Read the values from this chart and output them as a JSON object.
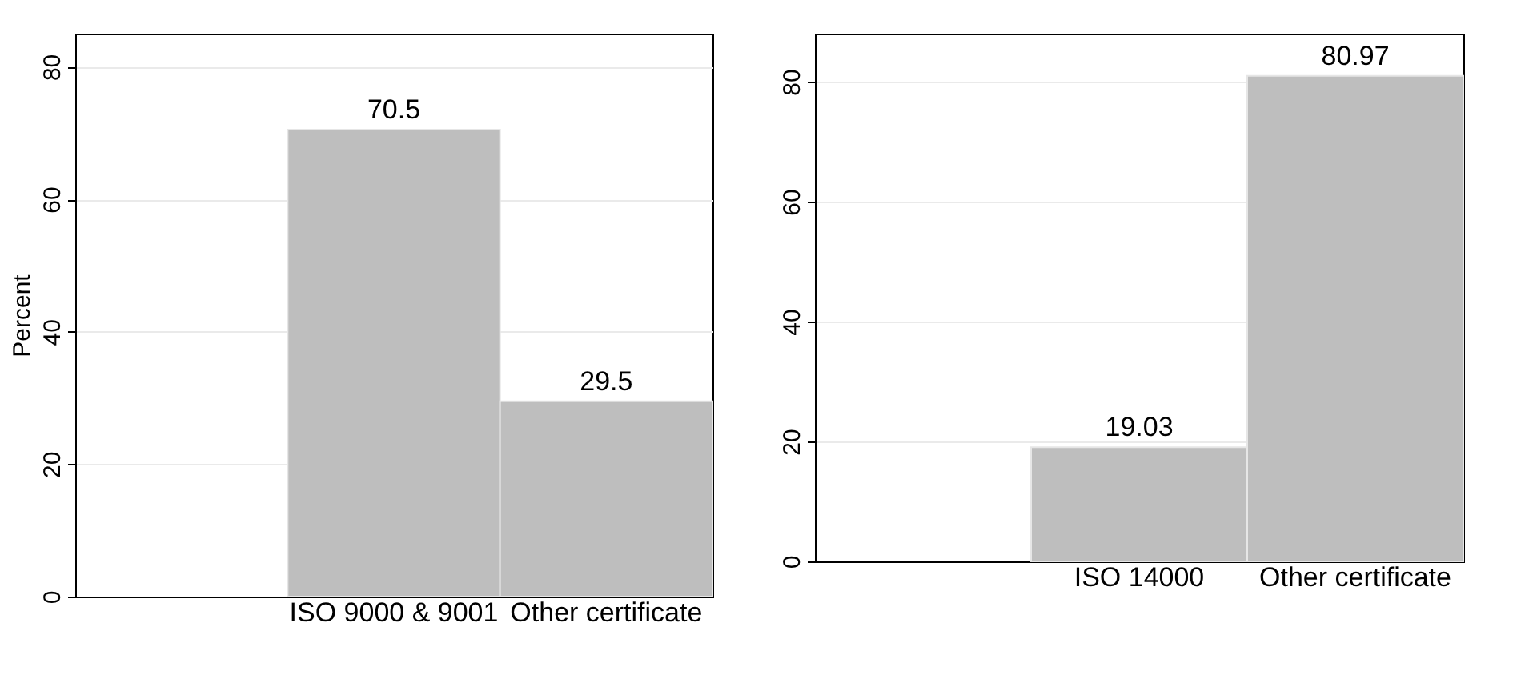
{
  "chart_data": [
    {
      "type": "bar",
      "ylabel": "Percent",
      "categories": [
        null,
        "ISO 9000 & 9001",
        "Other certificate"
      ],
      "values": [
        null,
        70.5,
        29.5
      ],
      "color": "#bebebe",
      "ylim": [
        0,
        85
      ],
      "yticks": [
        0,
        20,
        40,
        60,
        80
      ],
      "grid": "y",
      "data_labels": true
    },
    {
      "type": "bar",
      "categories": [
        null,
        "ISO 14000",
        "Other certificate"
      ],
      "values": [
        null,
        19.03,
        80.97
      ],
      "color": "#bebebe",
      "ylim": [
        0,
        88
      ],
      "yticks": [
        0,
        20,
        40,
        60,
        80
      ],
      "grid": "y",
      "data_labels": true
    }
  ]
}
